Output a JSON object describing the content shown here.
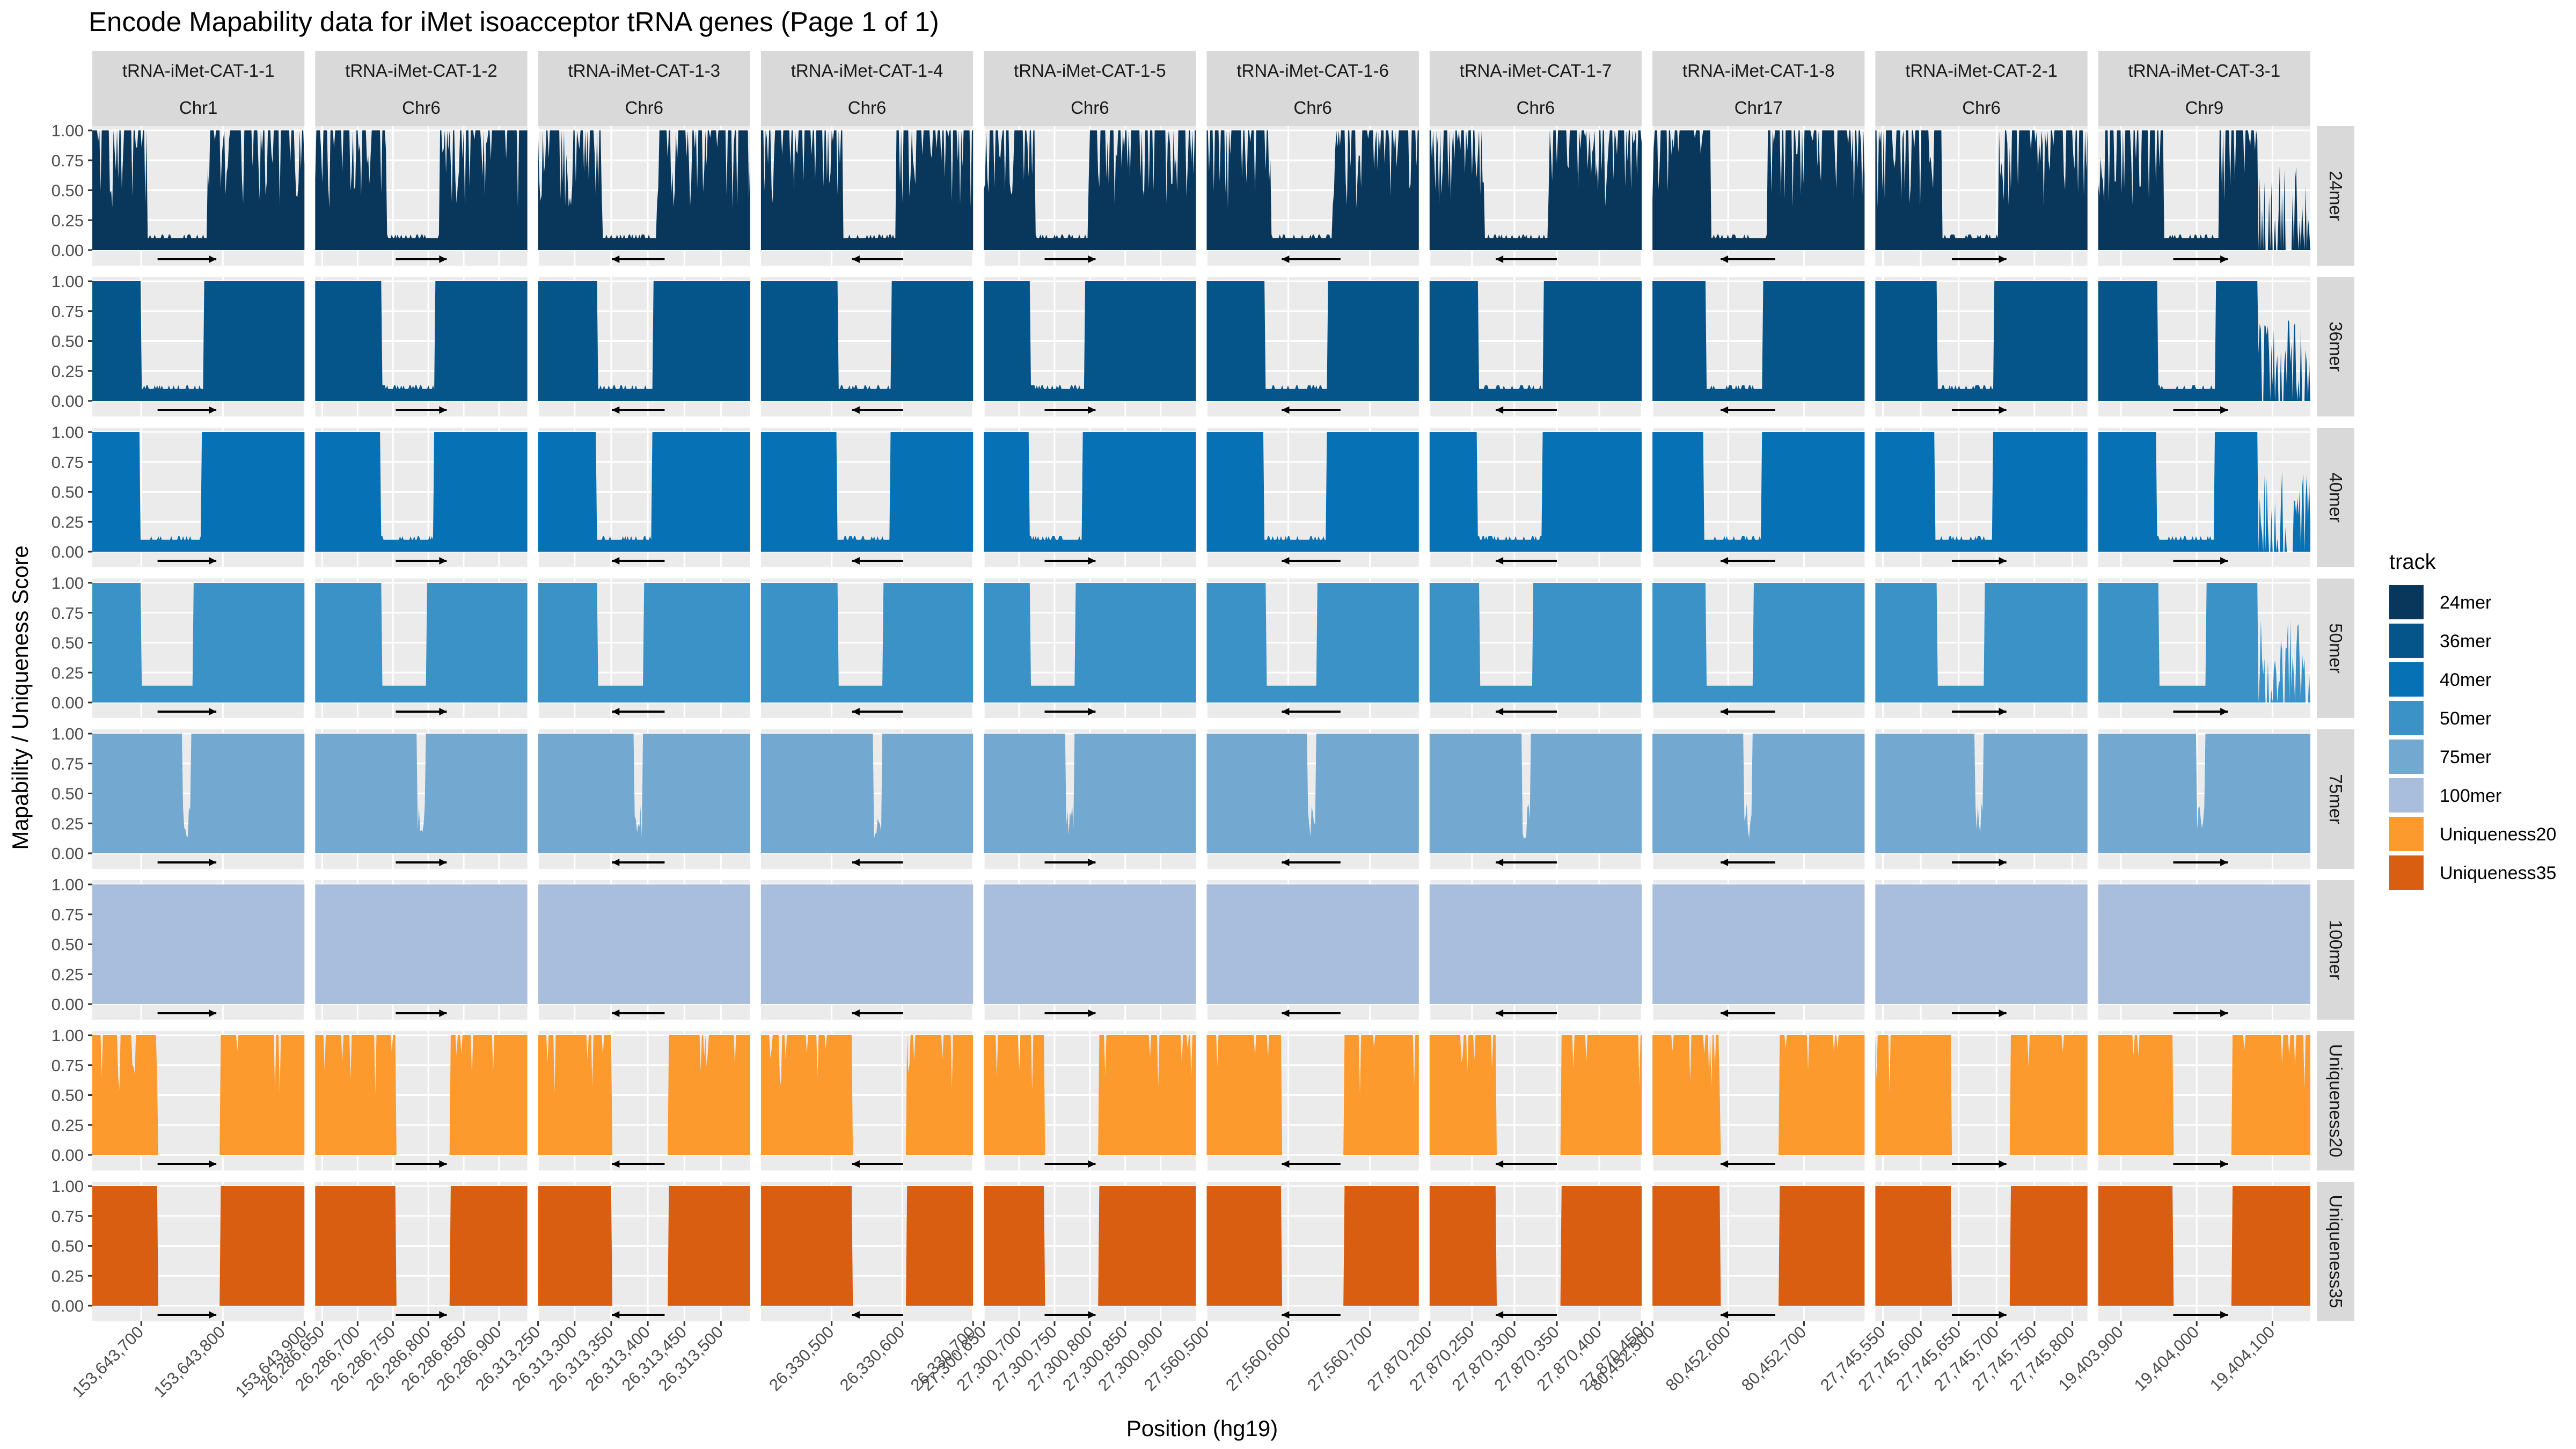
{
  "chart_data": {
    "type": "area",
    "title": "Encode Mapability data for iMet isoacceptor tRNA genes (Page 1 of 1)",
    "xlabel": "Position (hg19)",
    "ylabel": "Mapability / Uniqueness Score",
    "ylim": [
      0,
      1
    ],
    "y_ticks": [
      "0.00",
      "0.25",
      "0.50",
      "0.75",
      "1.00"
    ],
    "grid": true,
    "legend_position": "right",
    "legend": {
      "title": "track",
      "entries": [
        {
          "label": "24mer",
          "color": "#08375b"
        },
        {
          "label": "36mer",
          "color": "#05548a"
        },
        {
          "label": "40mer",
          "color": "#0771b5"
        },
        {
          "label": "50mer",
          "color": "#3b92c7"
        },
        {
          "label": "75mer",
          "color": "#73a9d1"
        },
        {
          "label": "100mer",
          "color": "#a9bddc"
        },
        {
          "label": "Uniqueness20",
          "color": "#fd9a2d"
        },
        {
          "label": "Uniqueness35",
          "color": "#da5e12"
        }
      ]
    },
    "facet_rows": [
      "24mer",
      "36mer",
      "40mer",
      "50mer",
      "75mer",
      "100mer",
      "Uniqueness20",
      "Uniqueness35"
    ],
    "genes": [
      {
        "name": "tRNA-iMet-CAT-1-1",
        "chrom": "Chr1",
        "xlim": [
          153643640,
          153643900
        ],
        "x_ticks": [
          "153,643,700",
          "153,643,800",
          "153,643,900"
        ],
        "strand": "+",
        "gene_start": 153643720,
        "gene_end": 153643792
      },
      {
        "name": "tRNA-iMet-CAT-1-2",
        "chrom": "Chr6",
        "xlim": [
          26286640,
          26286940
        ],
        "x_ticks": [
          "26,286,650",
          "26,286,700",
          "26,286,750",
          "26,286,800",
          "26,286,850",
          "26,286,900"
        ],
        "strand": "+",
        "gene_start": 26286754,
        "gene_end": 26286826
      },
      {
        "name": "tRNA-iMet-CAT-1-3",
        "chrom": "Chr6",
        "xlim": [
          26313250,
          26313540
        ],
        "x_ticks": [
          "26,313,250",
          "26,313,300",
          "26,313,350",
          "26,313,400",
          "26,313,450",
          "26,313,500"
        ],
        "strand": "-",
        "gene_start": 26313351,
        "gene_end": 26313423
      },
      {
        "name": "tRNA-iMet-CAT-1-4",
        "chrom": "Chr6",
        "xlim": [
          26330400,
          26330700
        ],
        "x_ticks": [
          "26,330,500",
          "26,330,600",
          "26,330,700"
        ],
        "strand": "-",
        "gene_start": 26330529,
        "gene_end": 26330601
      },
      {
        "name": "tRNA-iMet-CAT-1-5",
        "chrom": "Chr6",
        "xlim": [
          27300650,
          27300950
        ],
        "x_ticks": [
          "27,300,650",
          "27,300,700",
          "27,300,750",
          "27,300,800",
          "27,300,850",
          "27,300,900"
        ],
        "strand": "+",
        "gene_start": 27300736,
        "gene_end": 27300808
      },
      {
        "name": "tRNA-iMet-CAT-1-6",
        "chrom": "Chr6",
        "xlim": [
          27560500,
          27560760
        ],
        "x_ticks": [
          "27,560,500",
          "27,560,600",
          "27,560,700"
        ],
        "strand": "-",
        "gene_start": 27560592,
        "gene_end": 27560664
      },
      {
        "name": "tRNA-iMet-CAT-1-7",
        "chrom": "Chr6",
        "xlim": [
          27870200,
          27870450
        ],
        "x_ticks": [
          "27,870,200",
          "27,870,250",
          "27,870,300",
          "27,870,350",
          "27,870,400",
          "27,870,450"
        ],
        "strand": "-",
        "gene_start": 27870278,
        "gene_end": 27870350
      },
      {
        "name": "tRNA-iMet-CAT-1-8",
        "chrom": "Chr17",
        "xlim": [
          80452500,
          80452780
        ],
        "x_ticks": [
          "80,452,500",
          "80,452,600",
          "80,452,700"
        ],
        "strand": "-",
        "gene_start": 80452590,
        "gene_end": 80452662
      },
      {
        "name": "tRNA-iMet-CAT-2-1",
        "chrom": "Chr6",
        "xlim": [
          27745540,
          27745820
        ],
        "x_ticks": [
          "27,745,550",
          "27,745,600",
          "27,745,650",
          "27,745,700",
          "27,745,750",
          "27,745,800"
        ],
        "strand": "+",
        "gene_start": 27745641,
        "gene_end": 27745713
      },
      {
        "name": "tRNA-iMet-CAT-3-1",
        "chrom": "Chr9",
        "xlim": [
          19403870,
          19404150
        ],
        "x_ticks": [
          "19,403,900",
          "19,404,000",
          "19,404,100"
        ],
        "strand": "+",
        "gene_start": 19403969,
        "gene_end": 19404041
      }
    ],
    "series": [
      {
        "name": "24mer",
        "color": "#08375b"
      },
      {
        "name": "36mer",
        "color": "#05548a"
      },
      {
        "name": "40mer",
        "color": "#0771b5"
      },
      {
        "name": "50mer",
        "color": "#3b92c7"
      },
      {
        "name": "75mer",
        "color": "#73a9d1"
      },
      {
        "name": "100mer",
        "color": "#a9bddc"
      },
      {
        "name": "Uniqueness20",
        "color": "#fd9a2d"
      },
      {
        "name": "Uniqueness35",
        "color": "#da5e12"
      }
    ]
  }
}
